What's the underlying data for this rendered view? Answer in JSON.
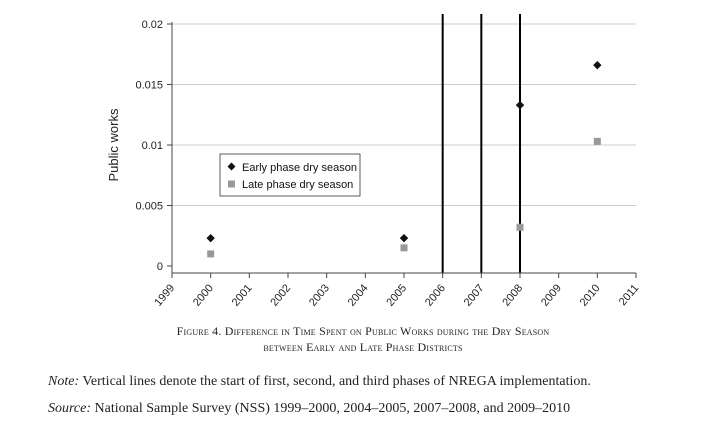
{
  "chart_data": {
    "type": "scatter",
    "ylabel": "Public works",
    "xlabel": "",
    "xlim": [
      1999,
      2011
    ],
    "ylim": [
      0,
      0.02
    ],
    "x_ticks": [
      "1999",
      "2000",
      "2001",
      "2002",
      "2003",
      "2004",
      "2005",
      "2006",
      "2007",
      "2008",
      "2009",
      "2010",
      "2011"
    ],
    "y_ticks": [
      "0",
      "0.005",
      "0.01",
      "0.015",
      "0.02"
    ],
    "grid": "horizontal",
    "legend_position": "center-left",
    "series": [
      {
        "name": "Early phase dry season",
        "marker": "diamond",
        "color": "#111111",
        "x": [
          2000,
          2005,
          2008,
          2010
        ],
        "y": [
          0.0023,
          0.0023,
          0.0133,
          0.0166
        ]
      },
      {
        "name": "Late phase dry season",
        "marker": "square",
        "color": "#999999",
        "x": [
          2000,
          2005,
          2008,
          2010
        ],
        "y": [
          0.001,
          0.0015,
          0.0032,
          0.0103
        ]
      }
    ],
    "vertical_lines": [
      2006,
      2007,
      2008
    ]
  },
  "caption": {
    "line1": "Figure 4. Difference in Time Spent on Public Works during the Dry Season",
    "line2": "between Early and Late Phase Districts"
  },
  "note": {
    "label": "Note:",
    "text": " Vertical lines denote the start of first, second, and third phases of NREGA implementation."
  },
  "source": {
    "label": "Source:",
    "text": " National Sample Survey (NSS) 1999–2000, 2004–2005, 2007–2008, and 2009–2010"
  }
}
